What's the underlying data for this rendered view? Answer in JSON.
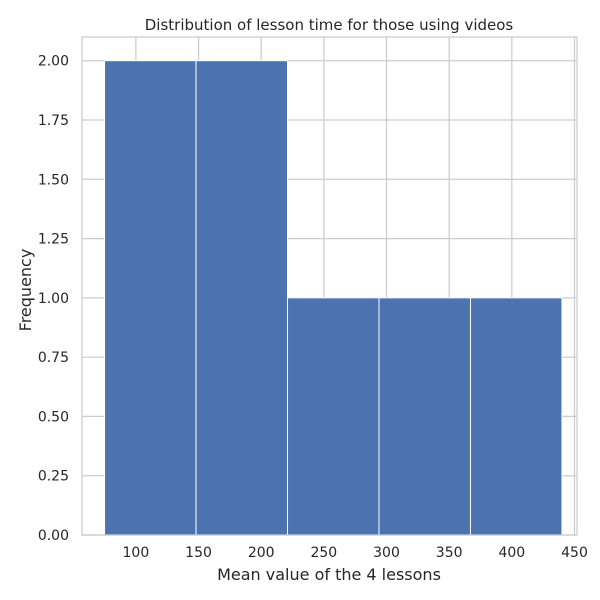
{
  "chart_data": {
    "type": "bar",
    "title": "Distribution of lesson time for those using videos",
    "xlabel": "Mean value of the 4 lessons",
    "ylabel": "Frequency",
    "bins": [
      {
        "start": 75,
        "end": 148,
        "count": 2
      },
      {
        "start": 148,
        "end": 221,
        "count": 2
      },
      {
        "start": 221,
        "end": 294,
        "count": 1
      },
      {
        "start": 294,
        "end": 367,
        "count": 1
      },
      {
        "start": 367,
        "end": 440,
        "count": 1
      }
    ],
    "xlim": [
      57,
      452
    ],
    "ylim": [
      0,
      2.1
    ],
    "xticks": [
      100,
      150,
      200,
      250,
      300,
      350,
      400,
      450
    ],
    "xtick_labels": [
      "100",
      "150",
      "200",
      "250",
      "300",
      "350",
      "400",
      "450"
    ],
    "yticks": [
      0,
      0.25,
      0.5,
      0.75,
      1.0,
      1.25,
      1.5,
      1.75,
      2.0
    ],
    "ytick_labels": [
      "0.00",
      "0.25",
      "0.50",
      "0.75",
      "1.00",
      "1.25",
      "1.50",
      "1.75",
      "2.00"
    ],
    "grid": true,
    "bar_color": "#4c72b0",
    "edge_color": "#ffffff",
    "grid_color": "#cccccc"
  }
}
